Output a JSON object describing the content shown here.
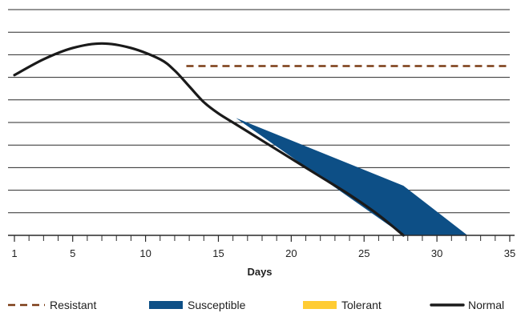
{
  "chart_data": {
    "type": "line",
    "title": "",
    "xlabel": "Days",
    "ylabel": "",
    "xlim": [
      1,
      35
    ],
    "ylim": [
      0,
      10
    ],
    "x_ticks": [
      1,
      5,
      10,
      15,
      20,
      25,
      30,
      35
    ],
    "x_tick_labels": [
      "1",
      "5",
      "10",
      "15",
      "20",
      "25",
      "30",
      "35"
    ],
    "minor_x_ticks": [
      2,
      3,
      4,
      6,
      7,
      8,
      9,
      11,
      12,
      13,
      14,
      16,
      17,
      18,
      19,
      21,
      22,
      23,
      24,
      26,
      27,
      28,
      29,
      31,
      32,
      33,
      34
    ],
    "horizontal_gridlines": [
      1,
      2,
      3,
      4,
      5,
      6,
      7,
      8,
      9,
      10
    ],
    "grid": true,
    "legend_position": "bottom",
    "series": [
      {
        "name": "Normal",
        "style": "solid",
        "color": "#1a1a1a",
        "x": [
          1,
          3,
          5,
          7,
          9,
          11,
          12,
          13,
          14,
          15,
          16,
          17,
          18,
          20,
          22,
          24,
          26,
          27.7
        ],
        "y": [
          7.1,
          7.8,
          8.3,
          8.5,
          8.3,
          7.8,
          7.3,
          6.6,
          5.9,
          5.4,
          5.0,
          4.6,
          4.2,
          3.4,
          2.6,
          1.8,
          0.9,
          0.0
        ]
      },
      {
        "name": "Resistant",
        "style": "dashed",
        "color": "#7a3b14",
        "x": [
          12.8,
          35
        ],
        "y": [
          7.5,
          7.5
        ]
      },
      {
        "name": "Susceptible",
        "style": "band",
        "color": "#0d4f86",
        "x": [
          16.2,
          27.7,
          32.1
        ],
        "y_upper": [
          5.2,
          2.2,
          0.0
        ],
        "y_lower": [
          5.2,
          0.0,
          0.0
        ]
      },
      {
        "name": "Tolerant",
        "style": "band",
        "color": "#ffcc33",
        "x": [
          16.2,
          23.8,
          27.7
        ],
        "y_upper": [
          5.2,
          0.0,
          0.0
        ],
        "y_lower": [
          5.2,
          0.0,
          0.0
        ]
      }
    ]
  },
  "legend": [
    {
      "label": "Resistant",
      "kind": "dashed",
      "color": "#7a3b14"
    },
    {
      "label": "Susceptible",
      "kind": "patch",
      "color": "#0d4f86"
    },
    {
      "label": "Tolerant",
      "kind": "patch",
      "color": "#ffcc33"
    },
    {
      "label": "Normal",
      "kind": "line",
      "color": "#1a1a1a"
    }
  ],
  "colors": {
    "grid": "#2a2a2a",
    "axis": "#2a2a2a",
    "text": "#1f1f1f"
  }
}
